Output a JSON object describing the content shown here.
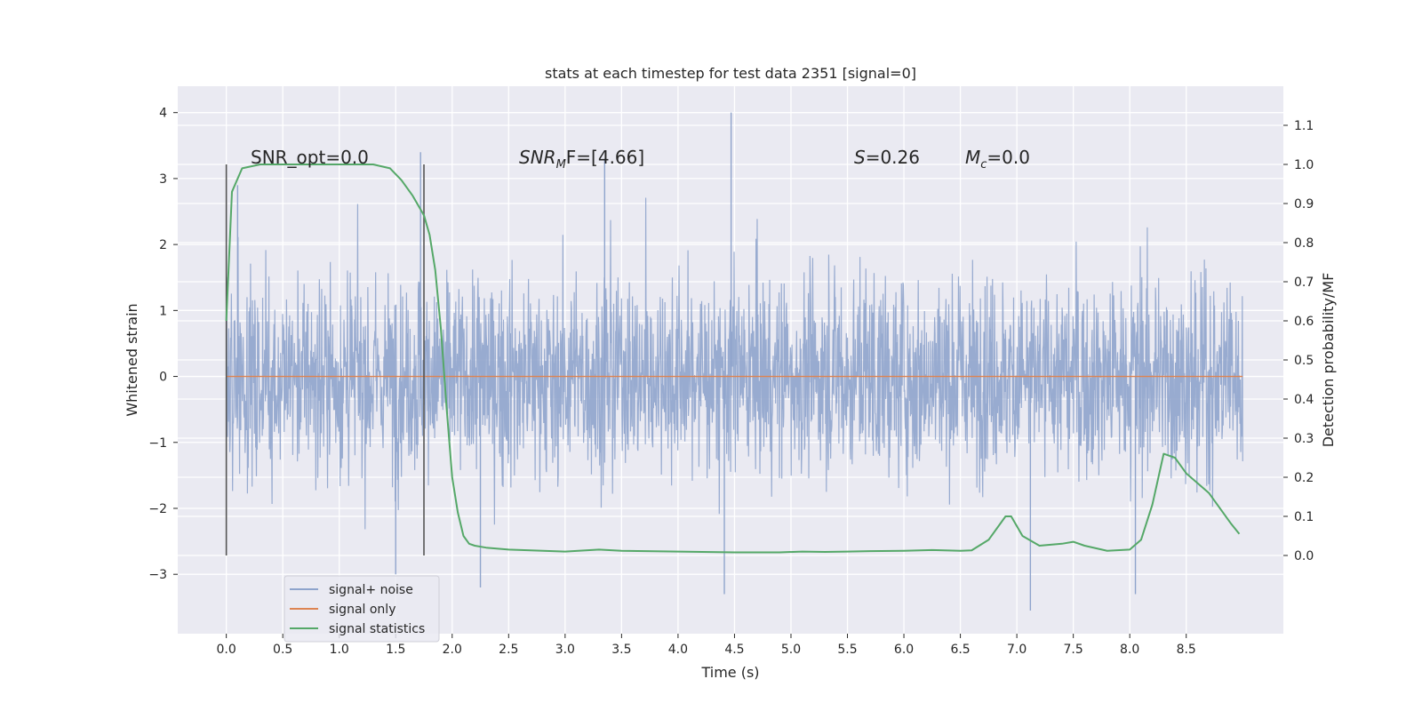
{
  "chart_data": {
    "type": "line",
    "title": "stats at each timestep for test data 2351 [signal=0]",
    "xlabel": "Time (s)",
    "ylabel_left": "Whitened strain",
    "ylabel_right": "Detection probability/MF",
    "xlim": [
      -0.43,
      9.36
    ],
    "ylim_left": [
      -3.9,
      4.4
    ],
    "ylim_right": [
      -0.2,
      1.2
    ],
    "x_ticks": [
      "0.0",
      "0.5",
      "1.0",
      "1.5",
      "2.0",
      "2.5",
      "3.0",
      "3.5",
      "4.0",
      "4.5",
      "5.0",
      "5.5",
      "6.0",
      "6.5",
      "7.0",
      "7.5",
      "8.0",
      "8.5"
    ],
    "y_left_ticks": [
      "−3",
      "−2",
      "−1",
      "0",
      "1",
      "2",
      "3",
      "4"
    ],
    "y_right_ticks": [
      "0.0",
      "0.1",
      "0.2",
      "0.3",
      "0.4",
      "0.5",
      "0.6",
      "0.7",
      "0.8",
      "0.9",
      "1.0",
      "1.1"
    ],
    "annotations": {
      "snr_opt": "SNR_opt=0.0",
      "snr_mf_main": "SNR",
      "snr_mf_sub": "M",
      "snr_mf_rest": "F=[4.66]",
      "s_main": "S",
      "s_rest": "=0.26",
      "mc_main": "M",
      "mc_sub": "c",
      "mc_rest": "=0.0"
    },
    "vlines_x": [
      0.0,
      1.75
    ],
    "legend": {
      "placement": "lower-left",
      "entries": [
        "signal+ noise",
        "signal only",
        "signal statistics"
      ]
    },
    "grid": true,
    "colors": {
      "noise": "#8fa4cc",
      "signal_only": "#dd8452",
      "statistics": "#55a868",
      "background": "#eaeaf2",
      "vline": "#555555"
    },
    "series": [
      {
        "name": "signal+ noise",
        "x_range": [
          0.0,
          9.0
        ],
        "typical_range": [
          -2.3,
          2.3
        ],
        "peak_max": 4.0,
        "peak_min": -3.55
      },
      {
        "name": "signal only",
        "x": [
          0.0,
          9.0
        ],
        "y": [
          0.0,
          0.0
        ]
      },
      {
        "name": "signal statistics",
        "axis": "right",
        "x": [
          0.0,
          0.05,
          0.14,
          0.3,
          0.6,
          1.0,
          1.3,
          1.45,
          1.55,
          1.65,
          1.75,
          1.8,
          1.85,
          1.9,
          1.95,
          2.0,
          2.05,
          2.1,
          2.15,
          2.2,
          2.3,
          2.5,
          3.0,
          3.3,
          3.5,
          4.0,
          4.5,
          4.9,
          5.1,
          5.3,
          5.5,
          5.7,
          6.0,
          6.25,
          6.5,
          6.6,
          6.75,
          6.9,
          6.95,
          7.05,
          7.2,
          7.4,
          7.5,
          7.6,
          7.8,
          8.0,
          8.1,
          8.2,
          8.3,
          8.4,
          8.5,
          8.6,
          8.7,
          8.8,
          8.9,
          8.97
        ],
        "y": [
          0.6,
          0.93,
          0.99,
          1.0,
          1.0,
          1.0,
          1.0,
          0.99,
          0.96,
          0.92,
          0.87,
          0.82,
          0.73,
          0.58,
          0.38,
          0.2,
          0.11,
          0.05,
          0.03,
          0.025,
          0.02,
          0.015,
          0.01,
          0.015,
          0.012,
          0.01,
          0.008,
          0.008,
          0.01,
          0.009,
          0.01,
          0.011,
          0.012,
          0.014,
          0.012,
          0.013,
          0.04,
          0.1,
          0.1,
          0.05,
          0.025,
          0.03,
          0.035,
          0.025,
          0.012,
          0.015,
          0.04,
          0.13,
          0.26,
          0.25,
          0.21,
          0.185,
          0.16,
          0.12,
          0.08,
          0.055
        ]
      }
    ]
  }
}
